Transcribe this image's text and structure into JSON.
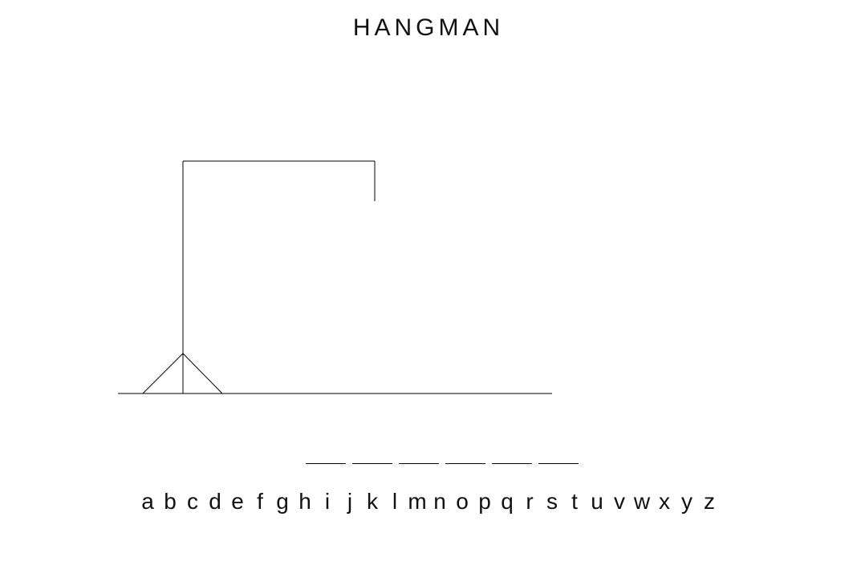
{
  "title": "HANGMAN",
  "gallows": {
    "stroke_color": "#000000"
  },
  "word": {
    "letter_count": 6,
    "revealed": [
      "",
      "",
      "",
      "",
      "",
      ""
    ]
  },
  "keyboard": {
    "letters": [
      "a",
      "b",
      "c",
      "d",
      "e",
      "f",
      "g",
      "h",
      "i",
      "j",
      "k",
      "l",
      "m",
      "n",
      "o",
      "p",
      "q",
      "r",
      "s",
      "t",
      "u",
      "v",
      "w",
      "x",
      "y",
      "z"
    ]
  }
}
